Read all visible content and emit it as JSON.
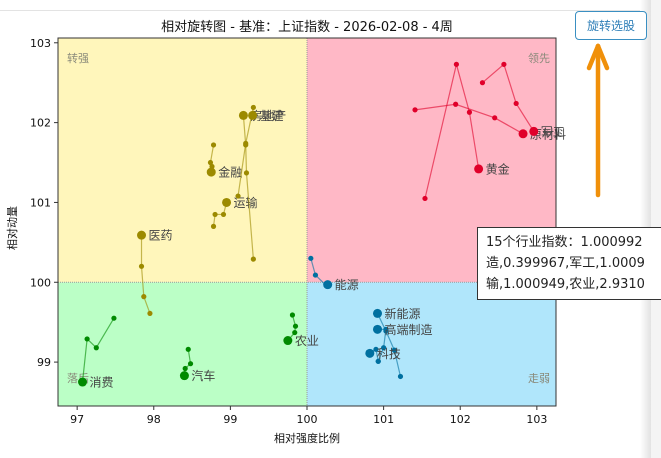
{
  "toolbar": {
    "rotate_select_label": "旋转选股"
  },
  "tooltip": {
    "lines": [
      "15个行业指数：1.000992",
      "造,0.399967,军工,1.0009",
      "输,1.000949,农业,2.9310"
    ]
  },
  "chart_data": {
    "type": "scatter",
    "title": "相对旋转图 - 基准：上证指数 - 2026-02-08 - 4周",
    "xlabel": "相对强度比例",
    "ylabel": "相对动量",
    "xlim": [
      96.75,
      103.25
    ],
    "ylim": [
      98.45,
      103.06
    ],
    "xticks": [
      97,
      98,
      99,
      100,
      101,
      102,
      103
    ],
    "yticks": [
      99,
      100,
      101,
      102,
      103
    ],
    "grid": false,
    "quadrants": {
      "top_left": {
        "label": "转强",
        "color": "#fff6bb"
      },
      "top_right": {
        "label": "领先",
        "color": "#ffb8c6"
      },
      "bottom_left": {
        "label": "落后",
        "color": "#bbffc6"
      },
      "bottom_right": {
        "label": "走弱",
        "color": "#b0e6fb"
      }
    },
    "quadrant_colors_line": {
      "转强": "#9c8a00",
      "领先": "#e0002a",
      "落后": "#008a00",
      "走弱": "#0070a0"
    },
    "series": [
      {
        "name": "医药",
        "quadrant": "转强",
        "x": [
          97.95,
          97.87,
          97.84,
          97.84
        ],
        "y": [
          99.61,
          99.82,
          100.2,
          100.59
        ]
      },
      {
        "name": "金融",
        "quadrant": "转强",
        "x": [
          98.78,
          98.74,
          98.76,
          98.75
        ],
        "y": [
          101.72,
          101.5,
          101.45,
          101.38
        ]
      },
      {
        "name": "运输",
        "quadrant": "转强",
        "x": [
          98.78,
          98.8,
          98.91,
          98.95
        ],
        "y": [
          100.7,
          100.85,
          100.85,
          101.0
        ]
      },
      {
        "name": "房地产",
        "quadrant": "转强",
        "x": [
          99.3,
          99.21,
          99.2,
          99.17
        ],
        "y": [
          100.29,
          101.37,
          101.72,
          102.09
        ]
      },
      {
        "name": "基建",
        "quadrant": "转强",
        "x": [
          99.1,
          99.2,
          99.3,
          99.29
        ],
        "y": [
          101.08,
          101.74,
          102.19,
          102.09
        ]
      },
      {
        "name": "消费",
        "quadrant": "落后",
        "x": [
          97.48,
          97.25,
          97.13,
          97.07
        ],
        "y": [
          99.55,
          99.18,
          99.29,
          98.75
        ]
      },
      {
        "name": "汽车",
        "quadrant": "落后",
        "x": [
          98.45,
          98.48,
          98.41,
          98.4
        ],
        "y": [
          99.16,
          98.98,
          98.92,
          98.83
        ]
      },
      {
        "name": "农业",
        "quadrant": "落后",
        "x": [
          99.81,
          99.85,
          99.84,
          99.75
        ],
        "y": [
          99.59,
          99.45,
          99.37,
          99.27
        ]
      },
      {
        "name": "能源",
        "quadrant": "走弱",
        "x": [
          100.05,
          100.11,
          100.25,
          100.27
        ],
        "y": [
          100.3,
          100.09,
          99.96,
          99.97
        ]
      },
      {
        "name": "新能源",
        "quadrant": "走弱",
        "x": [
          101.22,
          101.14,
          101.03,
          100.92
        ],
        "y": [
          98.82,
          99.15,
          99.39,
          99.61
        ]
      },
      {
        "name": "高端制造",
        "quadrant": "走弱",
        "x": [
          100.93,
          101.0,
          101.03,
          100.92
        ],
        "y": [
          99.01,
          99.18,
          99.41,
          99.41
        ]
      },
      {
        "name": "科技",
        "quadrant": "走弱",
        "x": [
          100.93,
          100.9,
          100.82
        ],
        "y": [
          99.01,
          99.16,
          99.11
        ]
      },
      {
        "name": "黄金",
        "quadrant": "领先",
        "x": [
          101.54,
          101.95,
          102.12,
          102.24
        ],
        "y": [
          101.05,
          102.73,
          102.13,
          101.42
        ]
      },
      {
        "name": "原材料",
        "quadrant": "领先",
        "x": [
          101.41,
          101.94,
          102.45,
          102.82
        ],
        "y": [
          102.16,
          102.23,
          102.06,
          101.86
        ]
      },
      {
        "name": "军工",
        "quadrant": "领先",
        "x": [
          102.29,
          102.57,
          102.73,
          102.96
        ],
        "y": [
          102.5,
          102.73,
          102.24,
          101.89
        ]
      }
    ]
  },
  "annotation": {
    "arrow_color": "#f0900a"
  }
}
